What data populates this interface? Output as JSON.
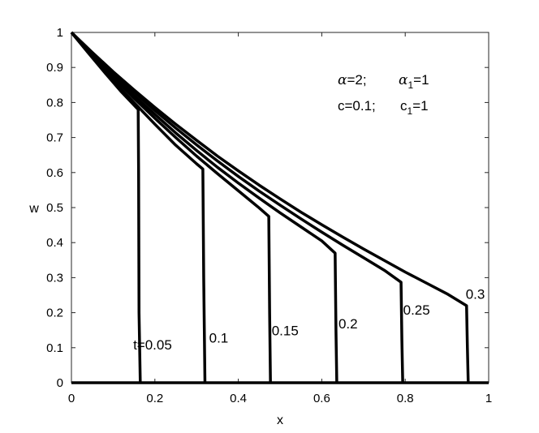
{
  "chart_data": {
    "type": "line",
    "xlabel": "x",
    "ylabel": "w",
    "xlim": [
      0,
      1
    ],
    "ylim": [
      0,
      1
    ],
    "xticks": [
      0,
      0.2,
      0.4,
      0.6,
      0.8,
      1
    ],
    "yticks": [
      0,
      0.1,
      0.2,
      0.3,
      0.4,
      0.5,
      0.6,
      0.7,
      0.8,
      0.9,
      1
    ],
    "xtick_labels": [
      "0",
      "0.2",
      "0.4",
      "0.6",
      "0.8",
      "1"
    ],
    "ytick_labels": [
      "0",
      "0.1",
      "0.2",
      "0.3",
      "0.4",
      "0.5",
      "0.6",
      "0.7",
      "0.8",
      "0.9",
      "1"
    ],
    "grid": false,
    "annotations": {
      "alpha": "=2;",
      "alpha1_sub": "1",
      "alpha1_val": "=1",
      "c": "c=0.1;",
      "c1_sub": "1",
      "c1_val": "=1"
    },
    "series": [
      {
        "label": "t=0.05",
        "front_x": 0.16,
        "front_w": 0.78,
        "x": [
          0,
          0.04,
          0.08,
          0.12,
          0.16,
          0.161,
          0.162,
          0.165
        ],
        "w": [
          1.0,
          0.942,
          0.885,
          0.83,
          0.78,
          0.6,
          0.2,
          0.0
        ]
      },
      {
        "label": "0.1",
        "front_x": 0.315,
        "front_w": 0.61,
        "x": [
          0,
          0.05,
          0.1,
          0.15,
          0.2,
          0.25,
          0.3,
          0.315,
          0.317,
          0.32
        ],
        "w": [
          1.0,
          0.931,
          0.862,
          0.8,
          0.738,
          0.678,
          0.625,
          0.61,
          0.3,
          0.0
        ]
      },
      {
        "label": "0.15",
        "front_x": 0.473,
        "front_w": 0.475,
        "x": [
          0,
          0.05,
          0.1,
          0.15,
          0.2,
          0.25,
          0.3,
          0.35,
          0.4,
          0.45,
          0.473,
          0.475,
          0.477
        ],
        "w": [
          1.0,
          0.935,
          0.872,
          0.812,
          0.755,
          0.7,
          0.647,
          0.597,
          0.548,
          0.499,
          0.475,
          0.2,
          0.0
        ]
      },
      {
        "label": "0.2",
        "front_x": 0.632,
        "front_w": 0.37,
        "x": [
          0,
          0.05,
          0.1,
          0.15,
          0.2,
          0.25,
          0.3,
          0.35,
          0.4,
          0.45,
          0.5,
          0.55,
          0.6,
          0.632,
          0.634,
          0.636
        ],
        "w": [
          1.0,
          0.938,
          0.878,
          0.82,
          0.766,
          0.713,
          0.663,
          0.615,
          0.57,
          0.527,
          0.485,
          0.445,
          0.405,
          0.37,
          0.15,
          0.0
        ]
      },
      {
        "label": "0.25",
        "front_x": 0.79,
        "front_w": 0.287,
        "x": [
          0,
          0.05,
          0.1,
          0.15,
          0.2,
          0.25,
          0.3,
          0.35,
          0.4,
          0.45,
          0.5,
          0.55,
          0.6,
          0.65,
          0.7,
          0.75,
          0.79,
          0.792,
          0.794
        ],
        "w": [
          1.0,
          0.941,
          0.884,
          0.83,
          0.777,
          0.727,
          0.679,
          0.633,
          0.589,
          0.547,
          0.507,
          0.468,
          0.43,
          0.393,
          0.357,
          0.321,
          0.287,
          0.12,
          0.0
        ]
      },
      {
        "label": "0.3",
        "front_x": 0.947,
        "front_w": 0.22,
        "x": [
          0,
          0.05,
          0.1,
          0.15,
          0.2,
          0.25,
          0.3,
          0.35,
          0.4,
          0.45,
          0.5,
          0.55,
          0.6,
          0.65,
          0.7,
          0.75,
          0.8,
          0.85,
          0.9,
          0.947,
          0.949,
          0.951
        ],
        "w": [
          1.0,
          0.943,
          0.888,
          0.836,
          0.786,
          0.738,
          0.692,
          0.647,
          0.605,
          0.564,
          0.525,
          0.487,
          0.451,
          0.416,
          0.382,
          0.349,
          0.316,
          0.285,
          0.254,
          0.22,
          0.1,
          0.0
        ]
      }
    ],
    "baseline": {
      "x": [
        0,
        1
      ],
      "w": [
        0,
        0
      ]
    }
  }
}
